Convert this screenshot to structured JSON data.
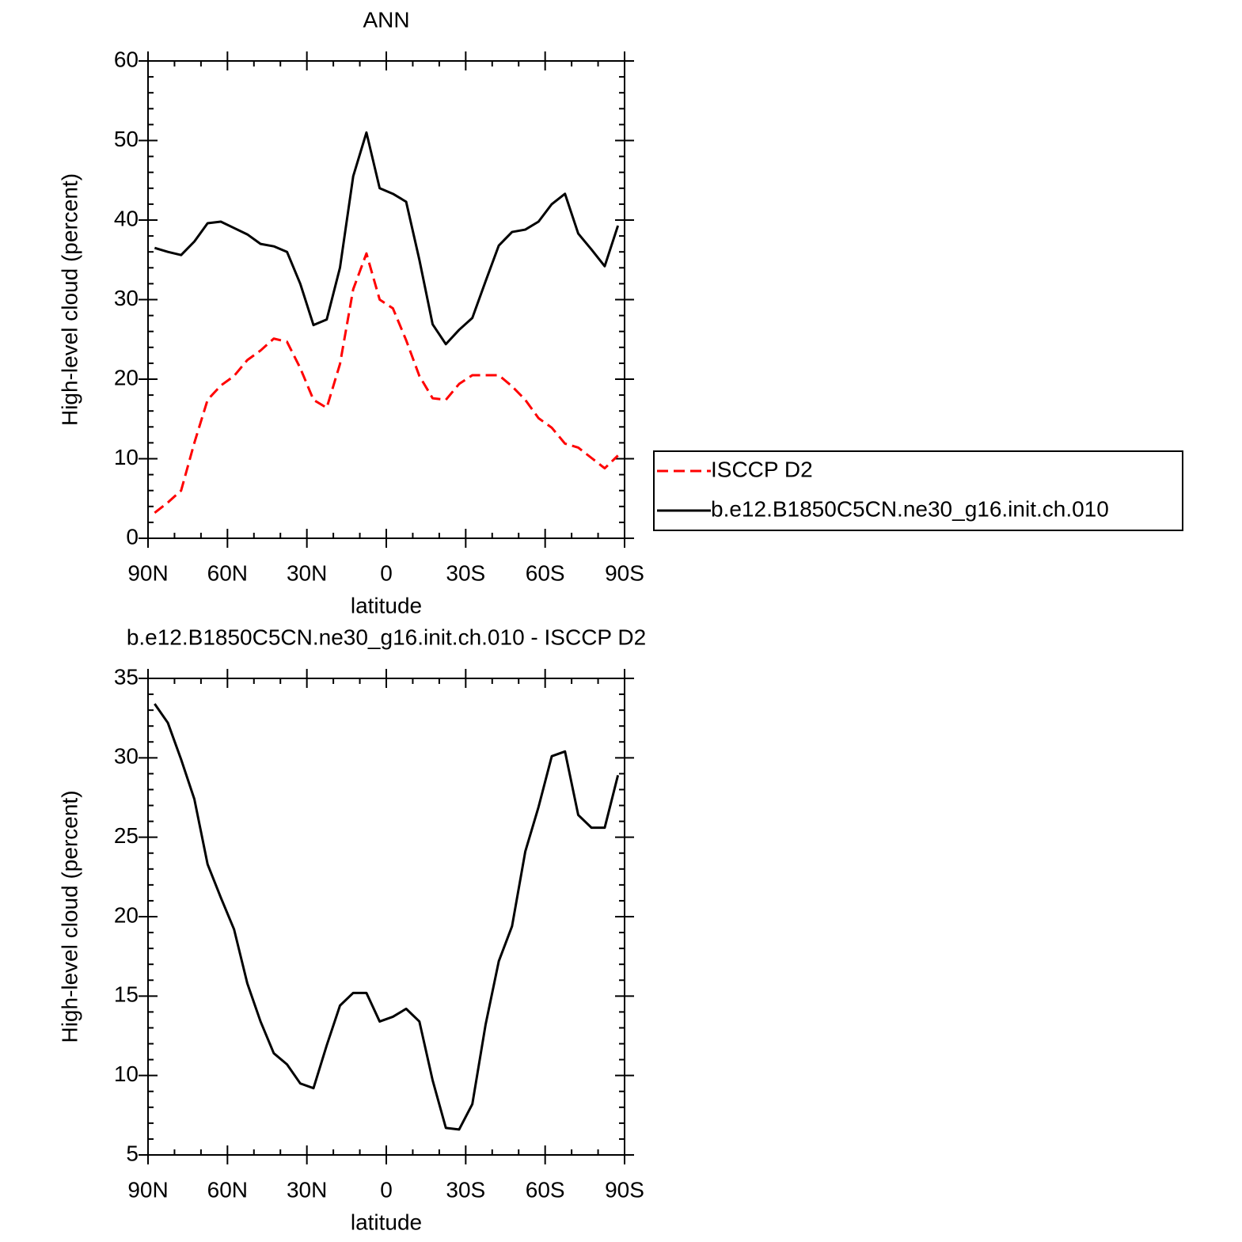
{
  "chart_data": [
    {
      "type": "line",
      "title": "ANN",
      "xlabel": "latitude",
      "ylabel": "High-level cloud (percent)",
      "x": [
        87.5,
        82.5,
        77.5,
        72.5,
        67.5,
        62.5,
        57.5,
        52.5,
        47.5,
        42.5,
        37.5,
        32.5,
        27.5,
        22.5,
        17.5,
        12.5,
        7.5,
        2.5,
        -2.5,
        -7.5,
        -12.5,
        -17.5,
        -22.5,
        -27.5,
        -32.5,
        -37.5,
        -42.5,
        -47.5,
        -52.5,
        -57.5,
        -62.5,
        -67.5,
        -72.5,
        -77.5,
        -82.5,
        -87.5
      ],
      "series": [
        {
          "name": "ISCCP D2",
          "color": "#ff0000",
          "dashed": true,
          "values": [
            3.2,
            4.5,
            6.0,
            12.0,
            17.4,
            19.2,
            20.4,
            22.4,
            23.6,
            25.1,
            24.7,
            21.4,
            17.4,
            16.4,
            21.9,
            31.3,
            35.8,
            30.0,
            28.9,
            24.9,
            20.4,
            17.6,
            17.4,
            19.4,
            20.5,
            20.5,
            20.5,
            19.1,
            17.4,
            15.1,
            13.9,
            11.9,
            11.4,
            10.1,
            8.8,
            10.4
          ]
        },
        {
          "name": "b.e12.B1850C5CN.ne30_g16.init.ch.010",
          "color": "#000000",
          "dashed": false,
          "values": [
            36.5,
            36.0,
            35.6,
            37.3,
            39.6,
            39.8,
            39.0,
            38.2,
            37.0,
            36.7,
            36.0,
            32.0,
            26.8,
            27.5,
            34.0,
            45.5,
            51.0,
            44.0,
            43.3,
            42.3,
            35.0,
            26.9,
            24.4,
            26.2,
            27.7,
            32.3,
            36.8,
            38.5,
            38.8,
            39.8,
            42.0,
            43.3,
            38.3,
            36.3,
            34.2,
            39.3
          ]
        }
      ],
      "legend": "right",
      "xlim": [
        90,
        -90
      ],
      "xticks": [
        {
          "value": 90,
          "label": "90N"
        },
        {
          "value": 60,
          "label": "60N"
        },
        {
          "value": 30,
          "label": "30N"
        },
        0,
        {
          "value": -30,
          "label": "30S"
        },
        {
          "value": -60,
          "label": "60S"
        },
        {
          "value": -90,
          "label": "90S"
        }
      ],
      "ylim": [
        0,
        60
      ],
      "yticks": [
        0,
        10,
        20,
        30,
        40,
        50,
        60
      ]
    },
    {
      "type": "line",
      "title": "b.e12.B1850C5CN.ne30_g16.init.ch.010 - ISCCP D2",
      "xlabel": "latitude",
      "ylabel": "High-level cloud (percent)",
      "x": [
        87.5,
        82.5,
        77.5,
        72.5,
        67.5,
        62.5,
        57.5,
        52.5,
        47.5,
        42.5,
        37.5,
        32.5,
        27.5,
        22.5,
        17.5,
        12.5,
        7.5,
        2.5,
        -2.5,
        -7.5,
        -12.5,
        -17.5,
        -22.5,
        -27.5,
        -32.5,
        -37.5,
        -42.5,
        -47.5,
        -52.5,
        -57.5,
        -62.5,
        -67.5,
        -72.5,
        -77.5,
        -82.5,
        -87.5
      ],
      "series": [
        {
          "color": "#000000",
          "dashed": false,
          "values": [
            33.4,
            32.2,
            29.9,
            27.4,
            23.3,
            21.2,
            19.2,
            15.8,
            13.4,
            11.4,
            10.7,
            9.5,
            9.2,
            11.9,
            14.4,
            15.2,
            15.2,
            13.4,
            13.7,
            14.2,
            13.4,
            9.7,
            6.7,
            6.6,
            8.2,
            13.2,
            17.2,
            19.4,
            24.1,
            26.9,
            30.1,
            30.4,
            26.4,
            25.6,
            25.6,
            28.9
          ]
        }
      ],
      "xlim": [
        90,
        -90
      ],
      "xticks": [
        {
          "value": 90,
          "label": "90N"
        },
        {
          "value": 60,
          "label": "60N"
        },
        {
          "value": 30,
          "label": "30N"
        },
        0,
        {
          "value": -30,
          "label": "30S"
        },
        {
          "value": -60,
          "label": "60S"
        },
        {
          "value": -90,
          "label": "90S"
        }
      ],
      "ylim": [
        5,
        35
      ],
      "yticks": [
        5,
        10,
        15,
        20,
        25,
        30,
        35
      ]
    }
  ]
}
